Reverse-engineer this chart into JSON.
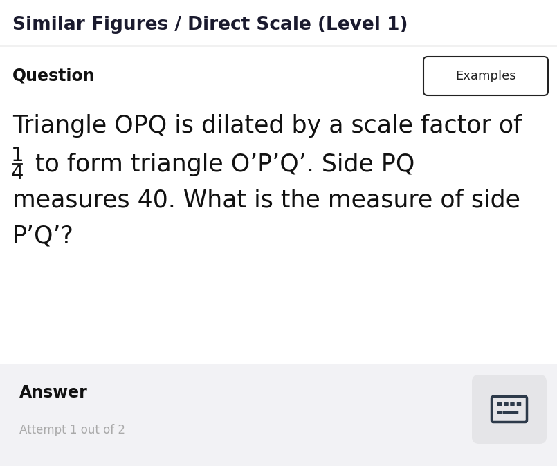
{
  "title": "Similar Figures / Direct Scale (Level 1)",
  "title_fontsize": 19,
  "title_color": "#1a1a2e",
  "title_fontweight": "bold",
  "background_color": "#ffffff",
  "divider_color": "#bbbbbb",
  "question_label": "Question",
  "question_label_fontsize": 17,
  "question_label_fontweight": "bold",
  "examples_button_text": "Examples",
  "examples_button_fontsize": 13,
  "examples_button_color": "#ffffff",
  "examples_button_border": "#222222",
  "question_line1": "Triangle OPQ is dilated by a scale factor of",
  "question_fraction_num": "1",
  "question_fraction_den": "4",
  "question_line2": " to form triangle O’P’Q’. Side PQ",
  "question_line3": "measures 40. What is the measure of side",
  "question_line4": "P’Q’?",
  "question_fontsize": 25,
  "question_color": "#111111",
  "answer_label": "Answer",
  "answer_label_fontsize": 17,
  "answer_label_fontweight": "bold",
  "answer_label_color": "#111111",
  "attempt_text": "Attempt 1 out of 2",
  "attempt_fontsize": 12,
  "attempt_color": "#aaaaaa",
  "answer_bg_color": "#f2f2f5",
  "keyboard_icon_color": "#2d3a4a",
  "keyboard_bg_color": "#e5e5e8"
}
